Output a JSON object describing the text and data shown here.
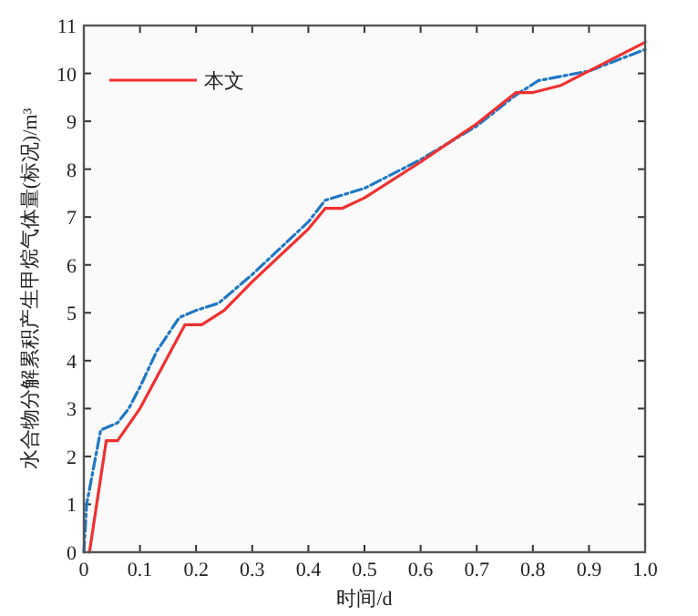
{
  "chart_data": {
    "type": "line",
    "xlabel": "时间/d",
    "ylabel": "水合物分解累积产生甲烷气体量(标况)/m³",
    "xlim": [
      0,
      1
    ],
    "ylim": [
      0,
      11
    ],
    "xticks": [
      0,
      0.1,
      0.2,
      0.3,
      0.4,
      0.5,
      0.6,
      0.7,
      0.8,
      0.9,
      {
        "value": 1,
        "label": "1.0"
      }
    ],
    "yticks": [
      0,
      1,
      2,
      3,
      4,
      5,
      6,
      7,
      8,
      9,
      10,
      11
    ],
    "legend": "top left",
    "grid": false,
    "series": [
      {
        "color": "#1f77c4",
        "line_style": "dashdot",
        "x": [
          0,
          0.005,
          0.03,
          0.06,
          0.08,
          0.1,
          0.13,
          0.17,
          0.2,
          0.24,
          0.3,
          0.35,
          0.4,
          0.43,
          0.5,
          0.6,
          0.7,
          0.77,
          0.81,
          0.9,
          1.0
        ],
        "values": [
          0,
          1.0,
          2.55,
          2.7,
          3.0,
          3.45,
          4.2,
          4.9,
          5.05,
          5.2,
          5.8,
          6.35,
          6.9,
          7.35,
          7.6,
          8.2,
          8.9,
          9.55,
          9.85,
          10.05,
          10.5
        ]
      },
      {
        "name": "本文",
        "color": "#f03030",
        "line_style": "solid",
        "x": [
          0.01,
          0.04,
          0.06,
          0.1,
          0.18,
          0.21,
          0.25,
          0.3,
          0.4,
          0.43,
          0.46,
          0.5,
          0.6,
          0.7,
          0.77,
          0.8,
          0.85,
          0.9,
          1.0
        ],
        "values": [
          0,
          2.33,
          2.33,
          3.0,
          4.75,
          4.75,
          5.05,
          5.65,
          6.75,
          7.18,
          7.18,
          7.4,
          8.15,
          8.95,
          9.6,
          9.6,
          9.75,
          10.05,
          10.65
        ]
      }
    ]
  }
}
